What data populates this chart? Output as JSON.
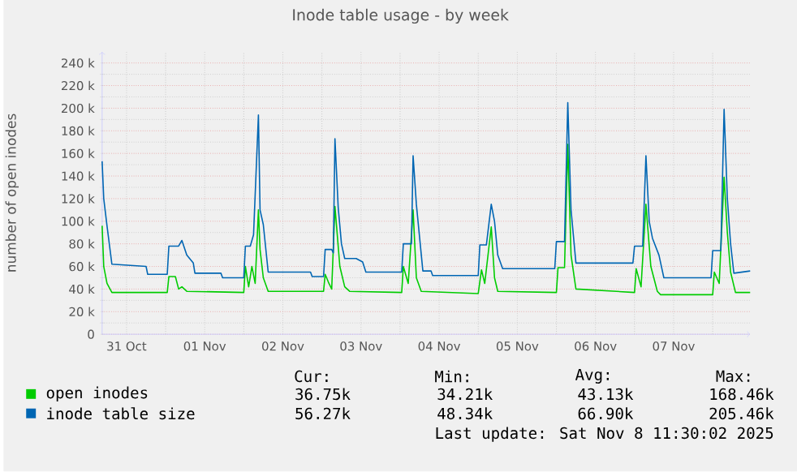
{
  "chart_data": {
    "type": "line",
    "title": "Inode table usage - by week",
    "ylabel": "number of open inodes",
    "xlim": [
      "2025-10-31T04:30",
      "2025-11-08T11:30"
    ],
    "xticks": [
      {
        "value": "2025-10-31T12:00",
        "label": "31 Oct"
      },
      {
        "value": "2025-11-01T12:00",
        "label": "01 Nov"
      },
      {
        "value": "2025-11-02T12:00",
        "label": "02 Nov"
      },
      {
        "value": "2025-11-03T12:00",
        "label": "03 Nov"
      },
      {
        "value": "2025-11-04T12:00",
        "label": "04 Nov"
      },
      {
        "value": "2025-11-05T12:00",
        "label": "05 Nov"
      },
      {
        "value": "2025-11-06T12:00",
        "label": "06 Nov"
      },
      {
        "value": "2025-11-07T12:00",
        "label": "07 Nov"
      },
      {
        "value": "2025-11-01T00:00",
        "label": null
      },
      {
        "value": "2025-11-02T00:00",
        "label": null
      },
      {
        "value": "2025-11-03T00:00",
        "label": null
      },
      {
        "value": "2025-11-04T00:00",
        "label": null
      },
      {
        "value": "2025-11-05T00:00",
        "label": null
      },
      {
        "value": "2025-11-06T00:00",
        "label": null
      },
      {
        "value": "2025-11-07T00:00",
        "label": null
      },
      {
        "value": "2025-11-08T00:00",
        "label": null
      }
    ],
    "ylim": [
      0,
      250000
    ],
    "yticks": [
      {
        "value": 0,
        "label": "0"
      },
      {
        "value": 20000,
        "label": "20 k"
      },
      {
        "value": 40000,
        "label": "40 k"
      },
      {
        "value": 60000,
        "label": "60 k"
      },
      {
        "value": 80000,
        "label": "80 k"
      },
      {
        "value": 100000,
        "label": "100 k"
      },
      {
        "value": 120000,
        "label": "120 k"
      },
      {
        "value": 140000,
        "label": "140 k"
      },
      {
        "value": 160000,
        "label": "160 k"
      },
      {
        "value": 180000,
        "label": "180 k"
      },
      {
        "value": 200000,
        "label": "200 k"
      },
      {
        "value": 220000,
        "label": "220 k"
      },
      {
        "value": 240000,
        "label": "240 k"
      }
    ],
    "grid": true,
    "legend": "bottom",
    "marker": "none",
    "line_style": "solid",
    "series": [
      {
        "name": "open inodes",
        "color": "#00cc00",
        "x": [
          "2025-10-31T04:30",
          "2025-10-31T05:00",
          "2025-10-31T06:00",
          "2025-10-31T07:30",
          "2025-11-01T00:30",
          "2025-11-01T01:00",
          "2025-11-01T03:00",
          "2025-11-01T04:00",
          "2025-11-01T05:00",
          "2025-11-01T06:30",
          "2025-11-02T00:00",
          "2025-11-02T00:30",
          "2025-11-02T01:30",
          "2025-11-02T02:30",
          "2025-11-02T03:30",
          "2025-11-02T04:30",
          "2025-11-02T05:00",
          "2025-11-02T06:00",
          "2025-11-02T07:30",
          "2025-11-03T00:30",
          "2025-11-03T01:00",
          "2025-11-03T02:00",
          "2025-11-03T03:00",
          "2025-11-03T04:00",
          "2025-11-03T05:30",
          "2025-11-03T07:00",
          "2025-11-03T08:30",
          "2025-11-04T00:30",
          "2025-11-04T01:00",
          "2025-11-04T02:30",
          "2025-11-04T04:00",
          "2025-11-04T05:00",
          "2025-11-04T06:30",
          "2025-11-05T00:00",
          "2025-11-05T01:00",
          "2025-11-05T02:00",
          "2025-11-05T04:00",
          "2025-11-05T05:00",
          "2025-11-05T06:00",
          "2025-11-06T00:00",
          "2025-11-06T00:30",
          "2025-11-06T02:30",
          "2025-11-06T03:30",
          "2025-11-06T04:30",
          "2025-11-06T06:00",
          "2025-11-07T00:00",
          "2025-11-07T00:30",
          "2025-11-07T02:00",
          "2025-11-07T03:30",
          "2025-11-07T05:00",
          "2025-11-07T07:00",
          "2025-11-07T08:00",
          "2025-11-08T00:00",
          "2025-11-08T00:30",
          "2025-11-08T02:00",
          "2025-11-08T03:30",
          "2025-11-08T04:30",
          "2025-11-08T05:30",
          "2025-11-08T07:00",
          "2025-11-08T11:30"
        ],
        "values": [
          96000,
          60000,
          45000,
          37000,
          37000,
          51000,
          51000,
          40000,
          42000,
          38000,
          37000,
          60000,
          42000,
          60000,
          45000,
          110000,
          75000,
          50000,
          38000,
          38000,
          53000,
          46000,
          40000,
          113000,
          60000,
          42000,
          38000,
          37000,
          60000,
          45000,
          110000,
          50000,
          38000,
          36000,
          57000,
          45000,
          95000,
          50000,
          38000,
          37000,
          59000,
          59000,
          168000,
          70000,
          40000,
          37000,
          58000,
          42000,
          115000,
          60000,
          38000,
          35000,
          35000,
          55000,
          45000,
          139000,
          90000,
          55000,
          37000,
          37000
        ]
      },
      {
        "name": "inode table size",
        "color": "#0066b3",
        "x": [
          "2025-10-31T04:30",
          "2025-10-31T05:00",
          "2025-10-31T06:00",
          "2025-10-31T07:30",
          "2025-10-31T18:00",
          "2025-10-31T18:30",
          "2025-11-01T00:30",
          "2025-11-01T01:00",
          "2025-11-01T04:00",
          "2025-11-01T05:00",
          "2025-11-01T06:30",
          "2025-11-01T08:30",
          "2025-11-01T09:00",
          "2025-11-01T17:00",
          "2025-11-01T17:30",
          "2025-11-02T00:00",
          "2025-11-02T00:30",
          "2025-11-02T02:00",
          "2025-11-02T03:00",
          "2025-11-02T04:30",
          "2025-11-02T05:00",
          "2025-11-02T06:00",
          "2025-11-02T07:30",
          "2025-11-02T20:30",
          "2025-11-02T21:00",
          "2025-11-03T00:30",
          "2025-11-03T01:00",
          "2025-11-03T03:00",
          "2025-11-03T03:30",
          "2025-11-03T04:00",
          "2025-11-03T05:00",
          "2025-11-03T06:00",
          "2025-11-03T07:00",
          "2025-11-03T10:30",
          "2025-11-03T12:30",
          "2025-11-03T13:30",
          "2025-11-04T00:30",
          "2025-11-04T01:00",
          "2025-11-04T03:30",
          "2025-11-04T04:00",
          "2025-11-04T05:00",
          "2025-11-04T07:00",
          "2025-11-04T09:30",
          "2025-11-04T10:00",
          "2025-11-05T00:00",
          "2025-11-05T00:30",
          "2025-11-05T02:30",
          "2025-11-05T04:00",
          "2025-11-05T05:00",
          "2025-11-05T06:00",
          "2025-11-05T07:30",
          "2025-11-05T23:30",
          "2025-11-06T00:00",
          "2025-11-06T02:30",
          "2025-11-06T03:30",
          "2025-11-06T04:30",
          "2025-11-06T06:00",
          "2025-11-06T23:30",
          "2025-11-07T00:00",
          "2025-11-07T02:30",
          "2025-11-07T03:30",
          "2025-11-07T04:30",
          "2025-11-07T05:30",
          "2025-11-07T07:30",
          "2025-11-07T09:00",
          "2025-11-07T23:30",
          "2025-11-08T00:00",
          "2025-11-08T02:30",
          "2025-11-08T03:30",
          "2025-11-08T04:30",
          "2025-11-08T05:30",
          "2025-11-08T06:30",
          "2025-11-08T11:30"
        ],
        "values": [
          153000,
          120000,
          96000,
          62000,
          60000,
          53000,
          53000,
          78000,
          78000,
          83000,
          70000,
          63000,
          54000,
          54000,
          50000,
          50000,
          78000,
          78000,
          88000,
          194000,
          110000,
          97000,
          55000,
          55000,
          51000,
          51000,
          75000,
          75000,
          72000,
          173000,
          112000,
          80000,
          67000,
          67000,
          64000,
          55000,
          55000,
          80000,
          80000,
          158000,
          115000,
          56000,
          56000,
          52000,
          52000,
          79000,
          79000,
          115000,
          100000,
          70000,
          58000,
          58000,
          82000,
          82000,
          205000,
          110000,
          63000,
          63000,
          78000,
          78000,
          158000,
          100000,
          85000,
          70000,
          50000,
          50000,
          74000,
          74000,
          199000,
          120000,
          80000,
          54000,
          56000
        ]
      }
    ],
    "annotations": [
      "Cur:",
      "Min:",
      "Avg:",
      "Max:",
      "36.75k",
      "34.21k",
      "43.13k",
      "168.46k",
      "56.27k",
      "48.34k",
      "66.90k",
      "205.46k",
      "Last update: Sat Nov  8 11:30:02 2025"
    ]
  }
}
